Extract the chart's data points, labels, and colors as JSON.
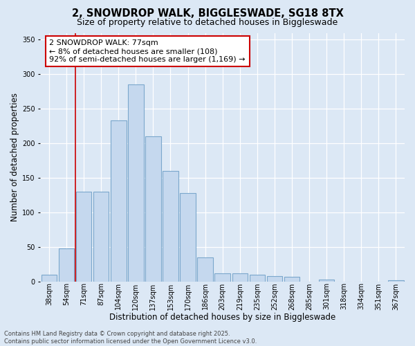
{
  "title1": "2, SNOWDROP WALK, BIGGLESWADE, SG18 8TX",
  "title2": "Size of property relative to detached houses in Biggleswade",
  "xlabel": "Distribution of detached houses by size in Biggleswade",
  "ylabel": "Number of detached properties",
  "categories": [
    "38sqm",
    "54sqm",
    "71sqm",
    "87sqm",
    "104sqm",
    "120sqm",
    "137sqm",
    "153sqm",
    "170sqm",
    "186sqm",
    "203sqm",
    "219sqm",
    "235sqm",
    "252sqm",
    "268sqm",
    "285sqm",
    "301sqm",
    "318sqm",
    "334sqm",
    "351sqm",
    "367sqm"
  ],
  "values": [
    10,
    48,
    130,
    130,
    233,
    285,
    210,
    160,
    128,
    35,
    12,
    12,
    10,
    8,
    7,
    0,
    3,
    0,
    0,
    0,
    2
  ],
  "bar_color": "#c5d8ee",
  "bar_edge_color": "#7ba7cc",
  "bar_linewidth": 0.8,
  "vline_color": "#cc0000",
  "vline_x": 1.5,
  "annotation_text": "2 SNOWDROP WALK: 77sqm\n← 8% of detached houses are smaller (108)\n92% of semi-detached houses are larger (1,169) →",
  "annotation_box_facecolor": "white",
  "annotation_box_edgecolor": "#cc0000",
  "ylim": [
    0,
    360
  ],
  "yticks": [
    0,
    50,
    100,
    150,
    200,
    250,
    300,
    350
  ],
  "bg_color": "#dce8f5",
  "grid_color": "white",
  "footer_text": "Contains HM Land Registry data © Crown copyright and database right 2025.\nContains public sector information licensed under the Open Government Licence v3.0.",
  "title1_fontsize": 10.5,
  "title2_fontsize": 9,
  "axis_label_fontsize": 8.5,
  "tick_fontsize": 7,
  "annotation_fontsize": 8,
  "footer_fontsize": 6
}
